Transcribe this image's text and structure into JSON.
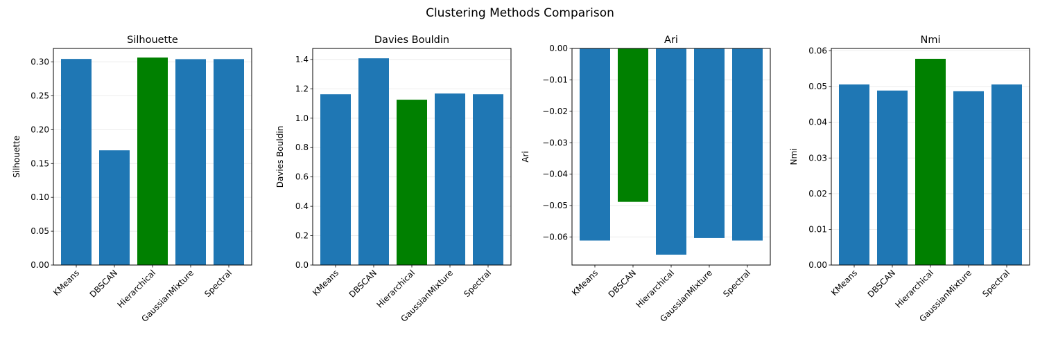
{
  "figure": {
    "title": "Clustering Methods Comparison"
  },
  "colors": {
    "default_bar": "#1f77b4",
    "best_bar": "#008000"
  },
  "chart_data": [
    {
      "type": "bar",
      "title": "Silhouette",
      "xlabel": "",
      "ylabel": "Silhouette",
      "categories": [
        "KMeans",
        "DBSCAN",
        "Hierarchical",
        "GaussianMixture",
        "Spectral"
      ],
      "values": [
        0.3045,
        0.1695,
        0.3065,
        0.3042,
        0.3043
      ],
      "highlight_index": 2,
      "ylim": [
        0,
        0.32
      ],
      "yticks": [
        0.0,
        0.05,
        0.1,
        0.15,
        0.2,
        0.25,
        0.3
      ],
      "ytick_labels": [
        "0.00",
        "0.05",
        "0.10",
        "0.15",
        "0.20",
        "0.25",
        "0.30"
      ],
      "grid": "y"
    },
    {
      "type": "bar",
      "title": "Davies Bouldin",
      "xlabel": "",
      "ylabel": "Davies Bouldin",
      "categories": [
        "KMeans",
        "DBSCAN",
        "Hierarchical",
        "GaussianMixture",
        "Spectral"
      ],
      "values": [
        1.163,
        1.408,
        1.126,
        1.168,
        1.163
      ],
      "highlight_index": 2,
      "ylim": [
        0,
        1.475
      ],
      "yticks": [
        0.0,
        0.2,
        0.4,
        0.6,
        0.8,
        1.0,
        1.2,
        1.4
      ],
      "ytick_labels": [
        "0.0",
        "0.2",
        "0.4",
        "0.6",
        "0.8",
        "1.0",
        "1.2",
        "1.4"
      ],
      "grid": "y"
    },
    {
      "type": "bar",
      "title": "Ari",
      "xlabel": "",
      "ylabel": "Ari",
      "categories": [
        "KMeans",
        "DBSCAN",
        "Hierarchical",
        "GaussianMixture",
        "Spectral"
      ],
      "values": [
        -0.0611,
        -0.0488,
        -0.0656,
        -0.0603,
        -0.0611
      ],
      "highlight_index": 1,
      "ylim": [
        -0.0689,
        0
      ],
      "yticks": [
        0.0,
        -0.01,
        -0.02,
        -0.03,
        -0.04,
        -0.05,
        -0.06
      ],
      "ytick_labels": [
        "0.00",
        "−0.01",
        "−0.02",
        "−0.03",
        "−0.04",
        "−0.05",
        "−0.06"
      ],
      "grid": "y"
    },
    {
      "type": "bar",
      "title": "Nmi",
      "xlabel": "",
      "ylabel": "Nmi",
      "categories": [
        "KMeans",
        "DBSCAN",
        "Hierarchical",
        "GaussianMixture",
        "Spectral"
      ],
      "values": [
        0.0506,
        0.0489,
        0.0578,
        0.0487,
        0.0506
      ],
      "highlight_index": 2,
      "ylim": [
        0,
        0.0607
      ],
      "yticks": [
        0.0,
        0.01,
        0.02,
        0.03,
        0.04,
        0.05,
        0.06
      ],
      "ytick_labels": [
        "0.00",
        "0.01",
        "0.02",
        "0.03",
        "0.04",
        "0.05",
        "0.06"
      ],
      "grid": "y"
    }
  ]
}
